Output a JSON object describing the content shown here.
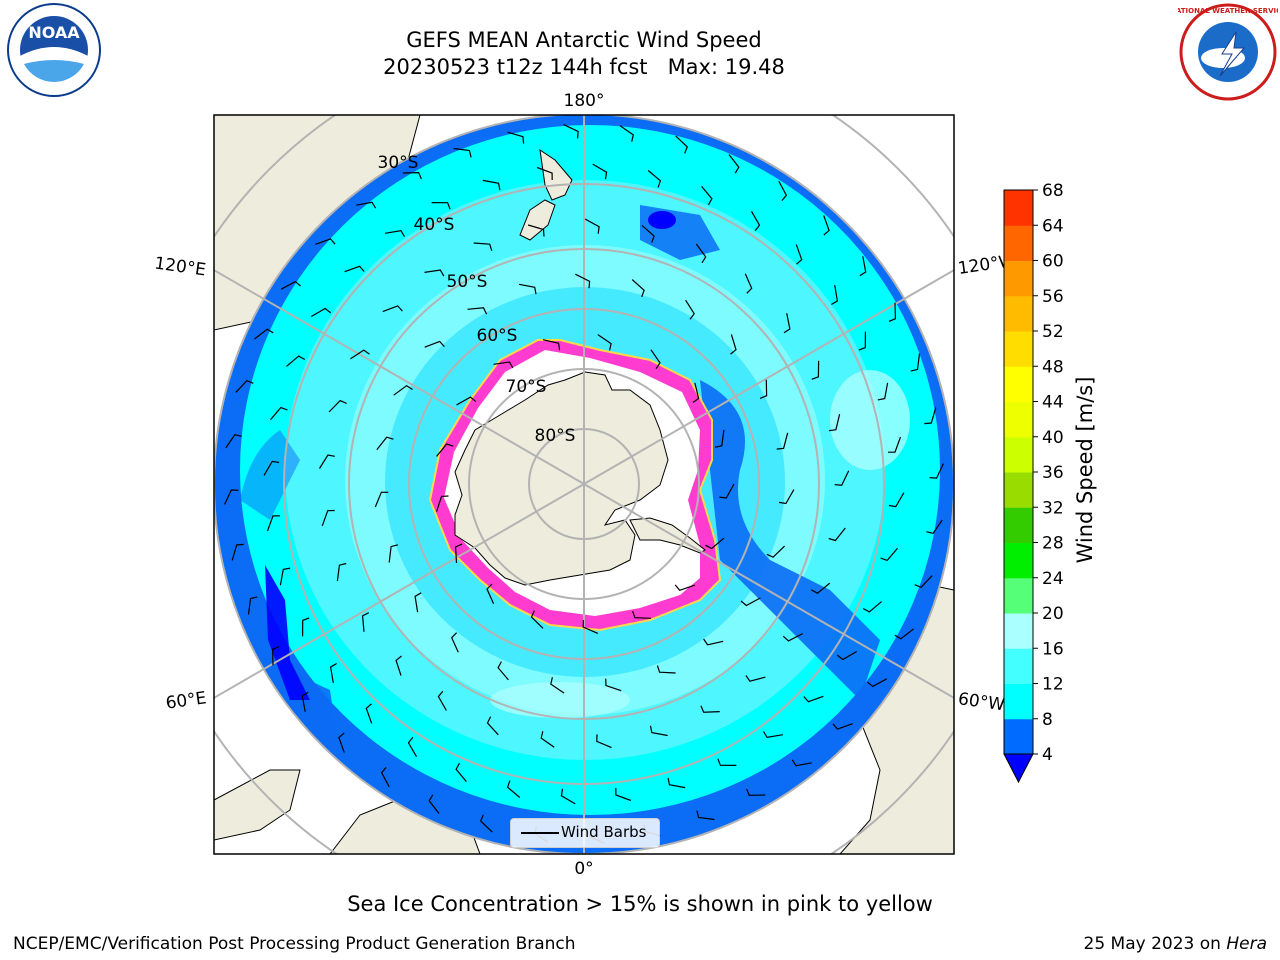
{
  "title": {
    "line1": "GEFS MEAN Antarctic Wind Speed",
    "line2": "20230523 t12z 144h fcst   Max: 19.48"
  },
  "map": {
    "projection": "south-polar-stereographic",
    "longitude_labels": {
      "top": "180°",
      "bottom": "0°",
      "left_upper": "120°E",
      "left_lower": "60°E",
      "right_upper": "120°W",
      "right_lower": "60°W"
    },
    "latitude_labels": [
      "30°S",
      "40°S",
      "50°S",
      "60°S",
      "70°S",
      "80°S"
    ],
    "colors": {
      "land": "#eeecdc",
      "ice": "#ffffff",
      "sea_ice_edge": "#ff33cc",
      "grid": "#b3b3b3",
      "ocean_outer": "#0b6cf5"
    },
    "legend_label": "Wind Barbs"
  },
  "colorbar": {
    "label": "Wind Speed [m/s]",
    "ticks": [
      "4",
      "8",
      "12",
      "16",
      "20",
      "24",
      "28",
      "32",
      "36",
      "40",
      "44",
      "48",
      "52",
      "56",
      "60",
      "64",
      "68"
    ],
    "colors": [
      "#006cff",
      "#00ffff",
      "#44ffff",
      "#aaffff",
      "#55ff77",
      "#00ee00",
      "#33cc00",
      "#99dd00",
      "#ccff00",
      "#eeff00",
      "#ffff00",
      "#ffdd00",
      "#ffbb00",
      "#ff9900",
      "#ff6600",
      "#ff3300"
    ],
    "under_color": "#0000ff",
    "over_color": "#ff0000"
  },
  "subtitle": "Sea Ice Concentration > 15% is shown in pink to yellow",
  "footer": {
    "left": "NCEP/EMC/Verification Post Processing Product Generation Branch",
    "right_date": "25 May 2023 on ",
    "right_machine": "Hera"
  },
  "logos": {
    "noaa_text": "NOAA",
    "nws_text": "NATIONAL WEATHER SERVICE"
  }
}
